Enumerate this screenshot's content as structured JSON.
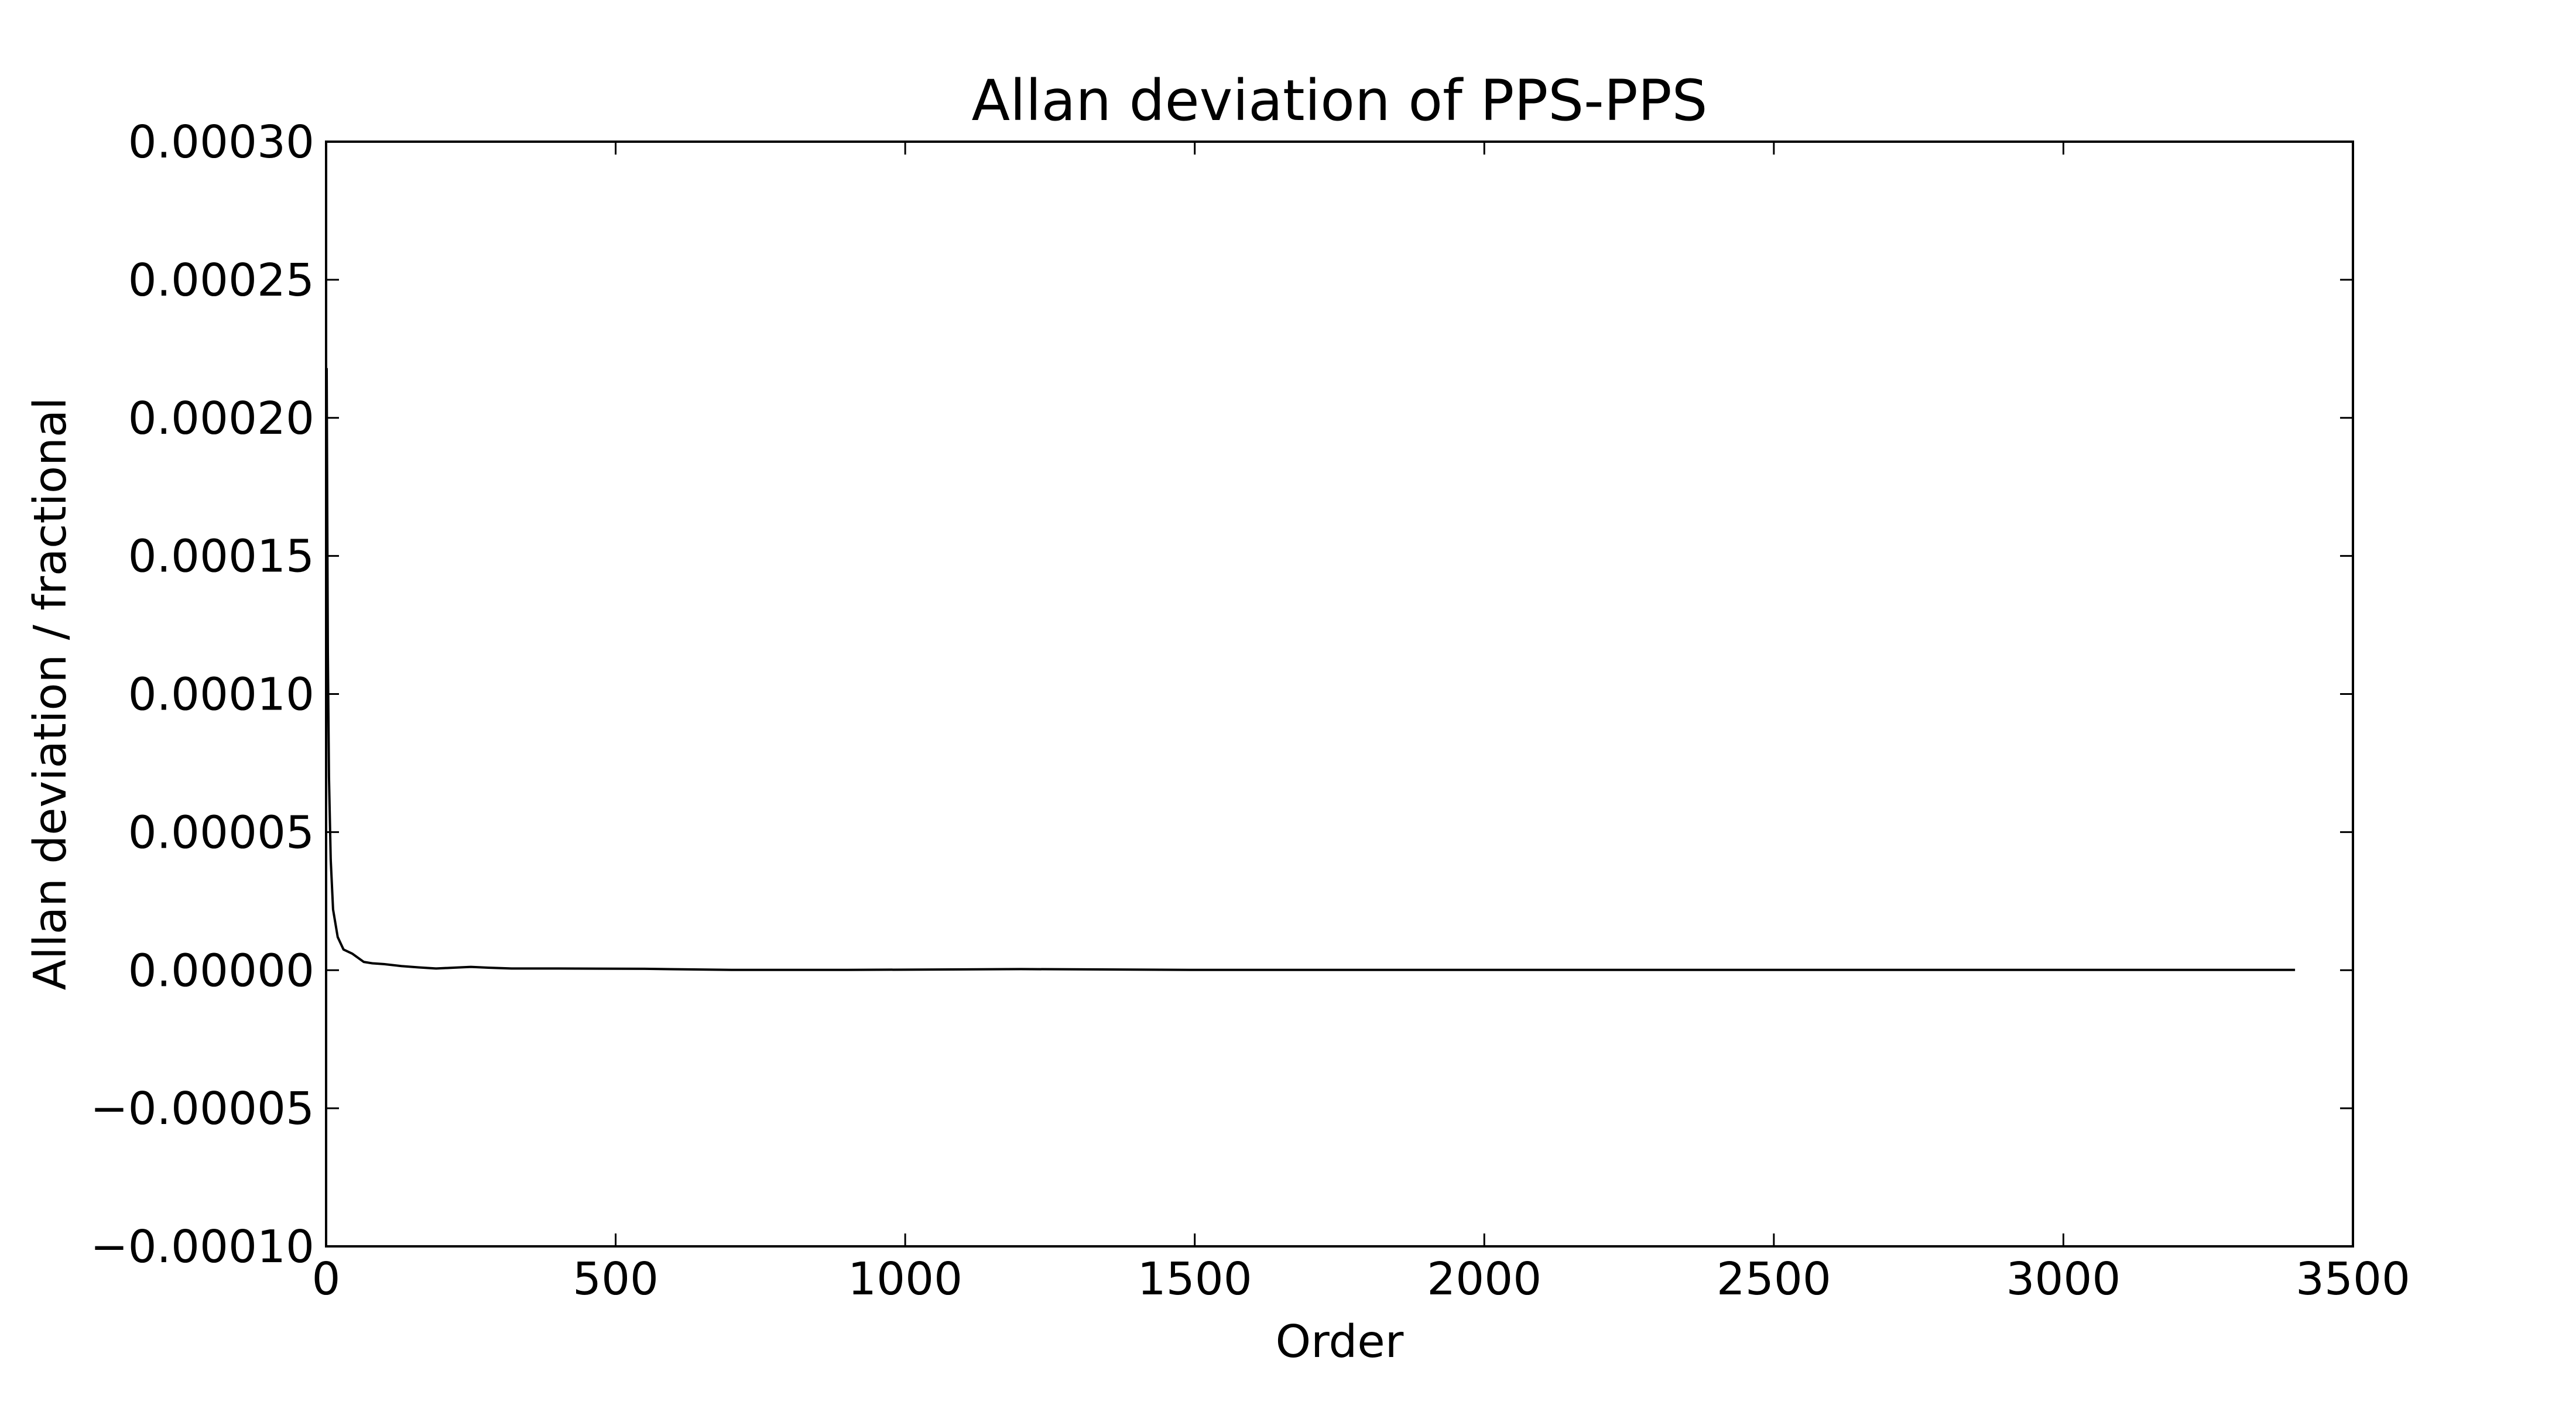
{
  "chart_data": {
    "type": "line",
    "title": "Allan deviation of PPS-PPS",
    "xlabel": "Order",
    "ylabel": "Allan deviation / fractional",
    "xlim": [
      0,
      3500
    ],
    "ylim": [
      -0.0001,
      0.0003
    ],
    "x_ticks": [
      0,
      500,
      1000,
      1500,
      2000,
      2500,
      3000,
      3500
    ],
    "x_tick_labels": [
      "0",
      "500",
      "1000",
      "1500",
      "2000",
      "2500",
      "3000",
      "3500"
    ],
    "y_ticks": [
      -0.0001,
      -5e-05,
      0,
      5e-05,
      0.0001,
      0.00015,
      0.0002,
      0.00025,
      0.0003
    ],
    "y_tick_labels": [
      "−0.00010",
      "−0.00005",
      "0.00000",
      "0.00005",
      "0.00010",
      "0.00015",
      "0.00020",
      "0.00025",
      "0.00030"
    ],
    "grid": false,
    "legend": "none",
    "line_color": "#000000",
    "series": [
      {
        "x": [
          1,
          2,
          3,
          5,
          8,
          12,
          20,
          30,
          45,
          55,
          65,
          80,
          100,
          130,
          160,
          190,
          220,
          250,
          280,
          320,
          400,
          550,
          700,
          900,
          1200,
          1500,
          2000,
          2500,
          3000,
          3400
        ],
        "y": [
          0.000218,
          0.000165,
          0.000115,
          7e-05,
          4e-05,
          2.2e-05,
          1.2e-05,
          7.5e-06,
          6e-06,
          4.5e-06,
          3e-06,
          2.5e-06,
          2.2e-06,
          1.5e-06,
          1e-06,
          6e-07,
          9e-07,
          1.2e-06,
          9e-07,
          6e-07,
          6e-07,
          5e-07,
          1e-07,
          1e-07,
          4e-07,
          1e-07,
          1e-07,
          1e-07,
          1e-07,
          1e-07
        ]
      }
    ]
  }
}
